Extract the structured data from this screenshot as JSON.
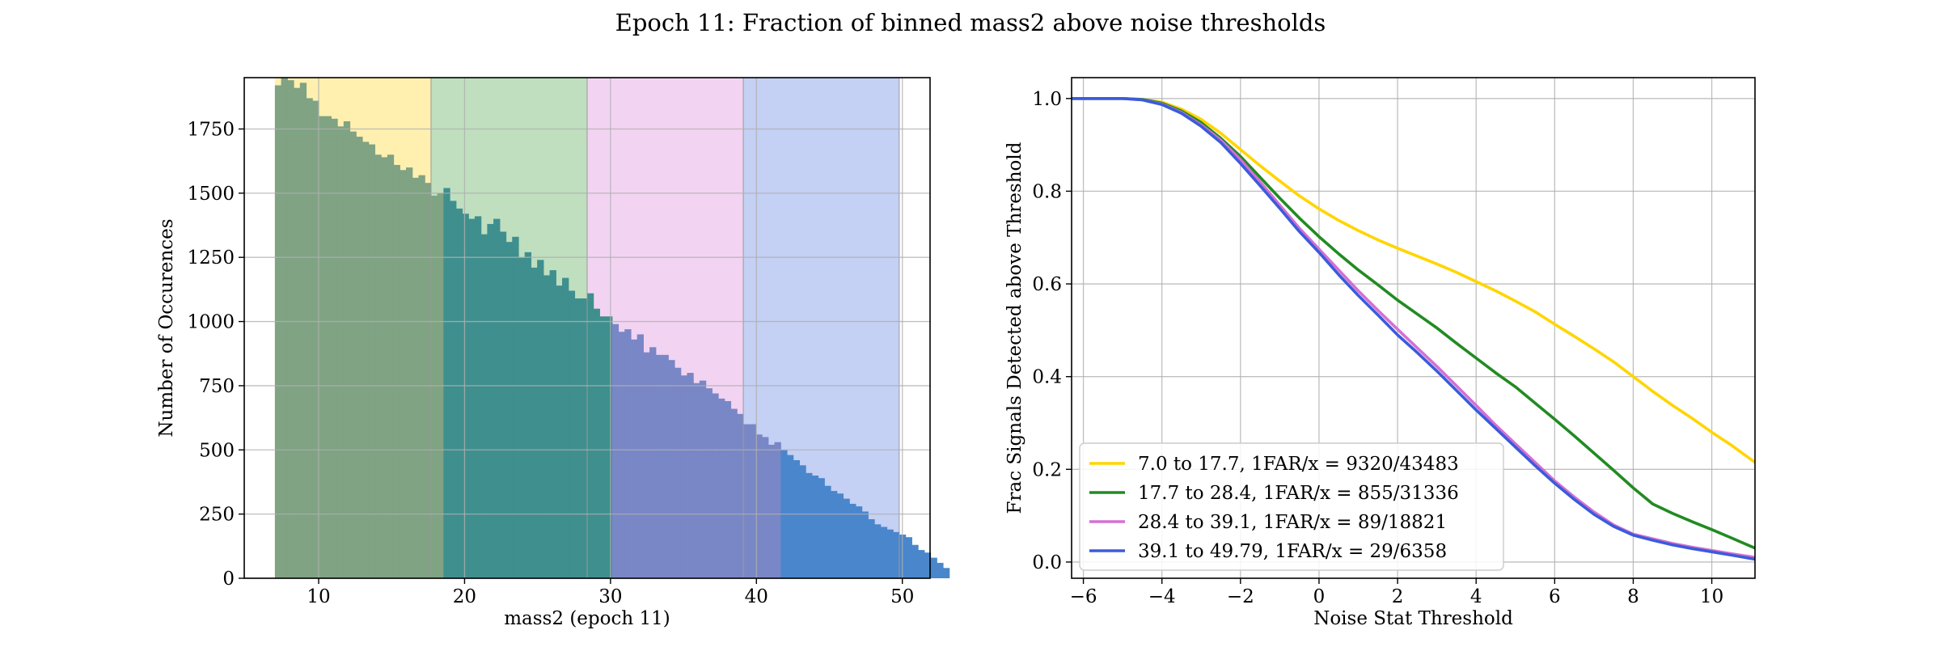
{
  "figure": {
    "title": "Epoch 11: Fraction of binned mass2 above noise thresholds"
  },
  "chart_data": [
    {
      "type": "bar",
      "title": "",
      "xlabel": "mass2 (epoch 11)",
      "ylabel": "Number of Occurences",
      "xlim": [
        4.9,
        51.9
      ],
      "ylim": [
        0,
        1950
      ],
      "xticks": [
        10,
        20,
        30,
        40,
        50
      ],
      "yticks": [
        0,
        250,
        500,
        750,
        1000,
        1250,
        1500,
        1750
      ],
      "grid": true,
      "bin_start": 7.0,
      "bin_width": 0.4279,
      "bins": [
        {
          "range": [
            7.0,
            17.7
          ],
          "color": "#7fa383",
          "band_color": "#fff0b0",
          "values": [
            1920,
            1950,
            1940,
            1910,
            1930,
            1870,
            1860,
            1800,
            1800,
            1790,
            1760,
            1780,
            1740,
            1720,
            1700,
            1690,
            1650,
            1640,
            1650,
            1610,
            1590,
            1600,
            1560,
            1570,
            1540,
            1490,
            1500
          ]
        },
        {
          "range": [
            17.7,
            28.4
          ],
          "color": "#3f8f8f",
          "band_color": "#bfdfbf",
          "values": [
            1520,
            1470,
            1440,
            1420,
            1400,
            1410,
            1340,
            1380,
            1400,
            1350,
            1310,
            1330,
            1250,
            1270,
            1210,
            1240,
            1180,
            1200,
            1140,
            1170,
            1120,
            1090,
            1090,
            1110,
            1050,
            1020,
            1020
          ]
        },
        {
          "range": [
            28.4,
            39.1
          ],
          "color": "#7987c6",
          "band_color": "#f2d4f2",
          "values": [
            990,
            960,
            970,
            930,
            950,
            880,
            900,
            870,
            870,
            850,
            820,
            790,
            800,
            760,
            770,
            740,
            720,
            700,
            690,
            660,
            640,
            600,
            600,
            560,
            550,
            520,
            530
          ]
        },
        {
          "range": [
            39.1,
            49.79
          ],
          "color": "#4a86cc",
          "band_color": "#c4d0f4",
          "values": [
            500,
            480,
            460,
            440,
            410,
            400,
            390,
            360,
            340,
            330,
            310,
            290,
            280,
            260,
            230,
            210,
            200,
            190,
            180,
            170,
            160,
            130,
            110,
            100,
            80,
            60,
            40
          ]
        }
      ]
    },
    {
      "type": "line",
      "title": "",
      "xlabel": "Noise Stat Threshold",
      "ylabel": "Frac Signals Detected above Threshold",
      "xlim": [
        -6.3,
        11.1
      ],
      "ylim": [
        -0.035,
        1.045
      ],
      "xticks": [
        -6,
        -4,
        -2,
        0,
        2,
        4,
        6,
        8,
        10
      ],
      "xtick_labels": [
        "−6",
        "−4",
        "−2",
        "0",
        "2",
        "4",
        "6",
        "8",
        "10"
      ],
      "yticks": [
        0.0,
        0.2,
        0.4,
        0.6,
        0.8,
        1.0
      ],
      "ytick_labels": [
        "0.0",
        "0.2",
        "0.4",
        "0.6",
        "0.8",
        "1.0"
      ],
      "grid": true,
      "legend_position": "lower-left",
      "x": [
        -6.3,
        -6,
        -5,
        -4.5,
        -4,
        -3.5,
        -3,
        -2.5,
        -2,
        -1.5,
        -1,
        -0.5,
        0,
        0.5,
        1,
        1.5,
        2,
        2.5,
        3,
        3.5,
        4,
        4.5,
        5,
        5.5,
        6,
        6.5,
        7,
        7.5,
        8,
        8.5,
        9,
        9.5,
        10,
        10.5,
        11.1
      ],
      "series": [
        {
          "name": "7.0 to 17.7, 1FAR/x = 9320/43483",
          "color": "#ffd500",
          "values": [
            1.0,
            1.0,
            1.0,
            0.998,
            0.992,
            0.977,
            0.955,
            0.925,
            0.89,
            0.855,
            0.822,
            0.79,
            0.762,
            0.737,
            0.715,
            0.695,
            0.677,
            0.66,
            0.643,
            0.625,
            0.605,
            0.585,
            0.563,
            0.54,
            0.513,
            0.487,
            0.46,
            0.432,
            0.4,
            0.368,
            0.338,
            0.31,
            0.28,
            0.252,
            0.215
          ]
        },
        {
          "name": "17.7 to 28.4, 1FAR/x = 855/31336",
          "color": "#228b22",
          "values": [
            1.0,
            1.0,
            1.0,
            0.998,
            0.99,
            0.973,
            0.948,
            0.914,
            0.875,
            0.83,
            0.785,
            0.742,
            0.702,
            0.665,
            0.63,
            0.598,
            0.565,
            0.535,
            0.505,
            0.472,
            0.44,
            0.408,
            0.378,
            0.343,
            0.308,
            0.272,
            0.235,
            0.198,
            0.16,
            0.125,
            0.105,
            0.087,
            0.07,
            0.052,
            0.03
          ]
        },
        {
          "name": "28.4 to 39.1, 1FAR/x = 89/18821",
          "color": "#d470d4",
          "values": [
            1.0,
            1.0,
            1.0,
            0.997,
            0.988,
            0.97,
            0.943,
            0.91,
            0.868,
            0.82,
            0.77,
            0.72,
            0.675,
            0.63,
            0.585,
            0.543,
            0.502,
            0.462,
            0.422,
            0.38,
            0.338,
            0.295,
            0.255,
            0.215,
            0.175,
            0.14,
            0.108,
            0.08,
            0.06,
            0.05,
            0.04,
            0.032,
            0.025,
            0.018,
            0.01
          ]
        },
        {
          "name": "39.1 to 49.79, 1FAR/x = 29/6358",
          "color": "#3b5bdb",
          "values": [
            1.0,
            1.0,
            1.0,
            0.997,
            0.987,
            0.968,
            0.94,
            0.905,
            0.86,
            0.812,
            0.763,
            0.713,
            0.668,
            0.62,
            0.575,
            0.533,
            0.49,
            0.452,
            0.412,
            0.37,
            0.328,
            0.288,
            0.248,
            0.208,
            0.17,
            0.135,
            0.103,
            0.077,
            0.058,
            0.047,
            0.037,
            0.029,
            0.022,
            0.015,
            0.006
          ]
        }
      ]
    }
  ]
}
